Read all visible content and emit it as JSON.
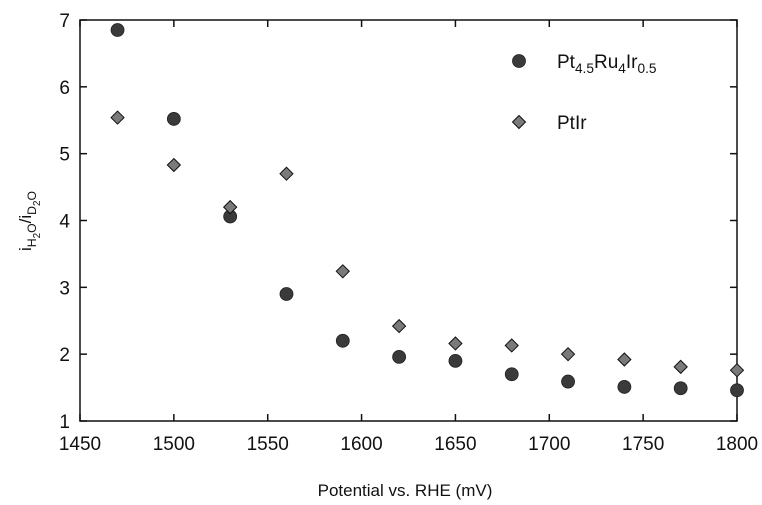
{
  "chart_data": {
    "type": "scatter",
    "title": "",
    "xlabel": "Potential vs. RHE (mV)",
    "ylabel": {
      "parts": [
        {
          "text": "i",
          "sub": false
        },
        {
          "text": "H",
          "sub": true
        },
        {
          "text": "2",
          "sub": "deep"
        },
        {
          "text": "O",
          "sub": true
        },
        {
          "text": "/i",
          "sub": false
        },
        {
          "text": "D",
          "sub": true
        },
        {
          "text": "2",
          "sub": "deep"
        },
        {
          "text": "O",
          "sub": true
        }
      ]
    },
    "xlim": [
      1450,
      1800
    ],
    "ylim": [
      1,
      7
    ],
    "xticks": [
      1450,
      1500,
      1550,
      1600,
      1650,
      1700,
      1750,
      1800
    ],
    "yticks": [
      1,
      2,
      3,
      4,
      5,
      6,
      7
    ],
    "grid": false,
    "legend_position": "top-right",
    "series": [
      {
        "name": {
          "parts": [
            {
              "text": "Pt",
              "sub": false
            },
            {
              "text": "4.5",
              "sub": true
            },
            {
              "text": "Ru",
              "sub": false
            },
            {
              "text": "4",
              "sub": true
            },
            {
              "text": "Ir",
              "sub": false
            },
            {
              "text": "0.5",
              "sub": true
            }
          ]
        },
        "marker": "circle",
        "color": "#3a3a3a",
        "x": [
          1470,
          1500,
          1530,
          1560,
          1590,
          1620,
          1650,
          1680,
          1710,
          1740,
          1770,
          1800
        ],
        "y": [
          6.85,
          5.52,
          4.06,
          2.9,
          2.2,
          1.96,
          1.9,
          1.7,
          1.59,
          1.51,
          1.49,
          1.46
        ]
      },
      {
        "name": {
          "parts": [
            {
              "text": "PtIr",
              "sub": false
            }
          ]
        },
        "marker": "diamond",
        "color": "#7a7a7a",
        "x": [
          1470,
          1500,
          1530,
          1560,
          1590,
          1620,
          1650,
          1680,
          1710,
          1740,
          1770,
          1800
        ],
        "y": [
          5.54,
          4.83,
          4.2,
          4.7,
          3.24,
          2.42,
          2.16,
          2.13,
          2.0,
          1.92,
          1.81,
          1.76
        ]
      }
    ]
  }
}
